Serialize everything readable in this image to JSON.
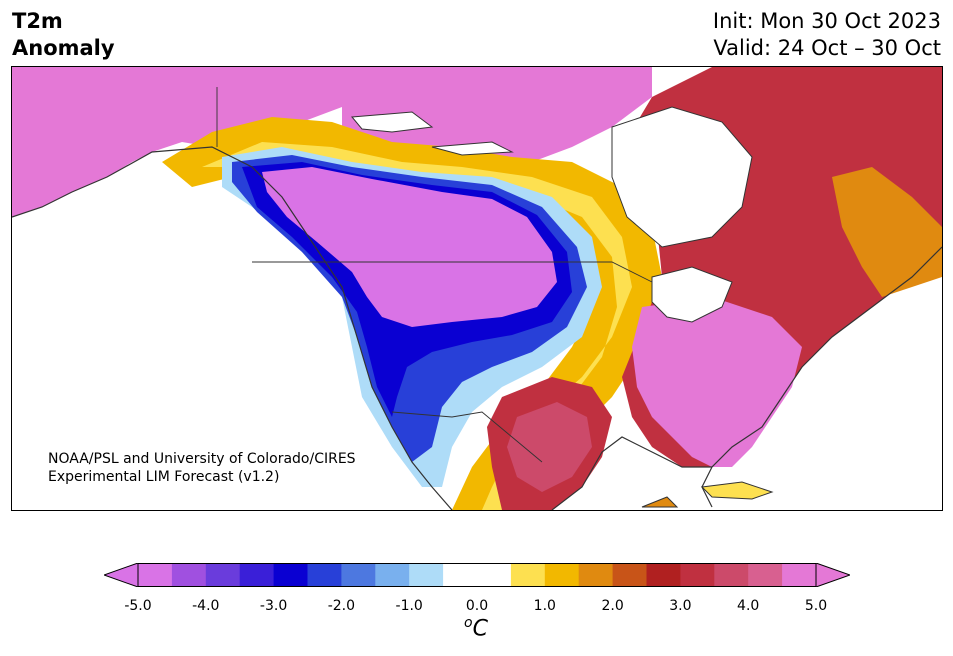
{
  "title": {
    "left_line1": "T2m",
    "left_line2": "Anomaly",
    "right_line1": "Init: Mon 30 Oct 2023",
    "right_line2": "Valid: 24 Oct – 30 Oct"
  },
  "credit": {
    "line1": "NOAA/PSL and University of Colorado/CIRES",
    "line2": "Experimental LIM Forecast (v1.2)"
  },
  "colorbar": {
    "ticks": [
      "-5.0",
      "-4.0",
      "-3.0",
      "-2.0",
      "-1.0",
      "0.0",
      "1.0",
      "2.0",
      "3.0",
      "4.0",
      "5.0"
    ],
    "unit_sup": "o",
    "unit": "C",
    "colors": [
      "#d973e6",
      "#a050e0",
      "#6a3cdc",
      "#3a1fd8",
      "#0a00d2",
      "#2840d8",
      "#4d78e0",
      "#79b0ee",
      "#aedcf8",
      "#ffffff",
      "#ffffff",
      "#fde050",
      "#f2b800",
      "#e08a10",
      "#c85418",
      "#b02020",
      "#c03040",
      "#cc4a6a",
      "#d86090",
      "#e478d6"
    ]
  },
  "map": {
    "land_white": "#ffffff",
    "ocean": "#ffffff",
    "outline": "#333333"
  }
}
